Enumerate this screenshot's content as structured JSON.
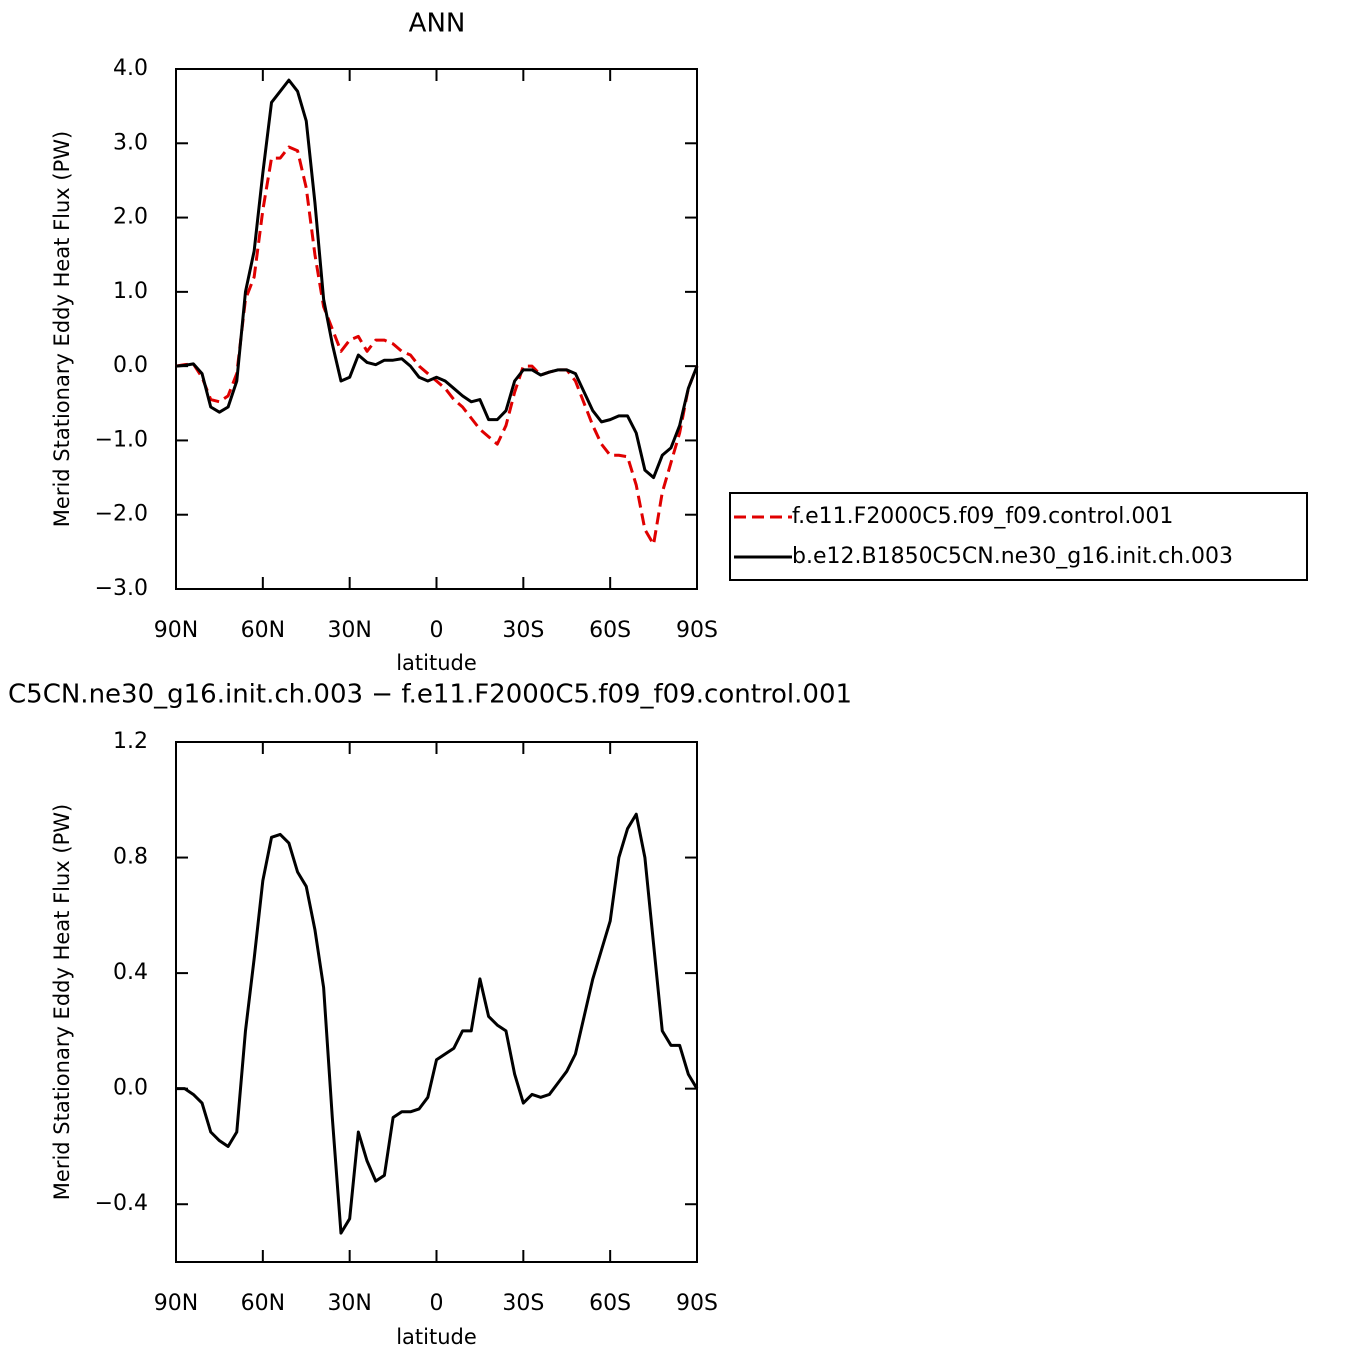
{
  "chart_data": [
    {
      "type": "line",
      "title": "ANN",
      "xlabel": "latitude",
      "ylabel": "Merid Stationary Eddy Heat Flux (PW)",
      "xlim": [
        90,
        -90
      ],
      "ylim": [
        -3,
        4
      ],
      "xticks": [
        {
          "value": 90,
          "label": "90N"
        },
        {
          "value": 60,
          "label": "60N"
        },
        {
          "value": 30,
          "label": "30N"
        },
        0,
        {
          "value": -30,
          "label": "30S"
        },
        {
          "value": -60,
          "label": "60S"
        },
        {
          "value": -90,
          "label": "90S"
        }
      ],
      "yticks": [
        {
          "value": -3,
          "label": "−3.0"
        },
        {
          "value": -2,
          "label": "−2.0"
        },
        {
          "value": -1,
          "label": "−1.0"
        },
        {
          "value": 0,
          "label": "0.0"
        },
        {
          "value": 1,
          "label": "1.0"
        },
        {
          "value": 2,
          "label": "2.0"
        },
        {
          "value": 3,
          "label": "3.0"
        },
        {
          "value": 4,
          "label": "4.0"
        }
      ],
      "legend_position": "right",
      "x": [
        90,
        87,
        84,
        81,
        78,
        75,
        72,
        69,
        66,
        63,
        60,
        57,
        54,
        51,
        48,
        45,
        42,
        39,
        36,
        33,
        30,
        27,
        24,
        21,
        18,
        15,
        12,
        9,
        6,
        3,
        0,
        -3,
        -6,
        -9,
        -12,
        -15,
        -18,
        -21,
        -24,
        -27,
        -30,
        -33,
        -36,
        -39,
        -42,
        -45,
        -48,
        -51,
        -54,
        -57,
        -60,
        -63,
        -66,
        -69,
        -72,
        -75,
        -78,
        -81,
        -84,
        -87,
        -90
      ],
      "series": [
        {
          "name": "f.e11.F2000C5.f09_f09.control.001",
          "color": "#e00000",
          "dashed": true,
          "values": [
            0,
            0.02,
            0.03,
            -0.15,
            -0.45,
            -0.48,
            -0.4,
            -0.1,
            0.9,
            1.2,
            2.1,
            2.8,
            2.8,
            2.95,
            2.9,
            2.4,
            1.5,
            0.8,
            0.5,
            0.2,
            0.35,
            0.4,
            0.2,
            0.35,
            0.35,
            0.3,
            0.2,
            0.15,
            0.0,
            -0.1,
            -0.2,
            -0.3,
            -0.45,
            -0.55,
            -0.7,
            -0.85,
            -0.95,
            -1.05,
            -0.8,
            -0.35,
            0.0,
            0.0,
            -0.12,
            -0.08,
            -0.05,
            -0.05,
            -0.2,
            -0.5,
            -0.8,
            -1.05,
            -1.2,
            -1.2,
            -1.22,
            -1.6,
            -2.2,
            -2.4,
            -1.7,
            -1.3,
            -0.9,
            -0.3,
            0
          ]
        },
        {
          "name": "b.e12.B1850C5CN.ne30_g16.init.ch.003",
          "color": "#000000",
          "dashed": false,
          "values": [
            0,
            0.01,
            0.03,
            -0.1,
            -0.55,
            -0.62,
            -0.55,
            -0.2,
            1.0,
            1.55,
            2.6,
            3.55,
            3.7,
            3.85,
            3.7,
            3.3,
            2.2,
            0.9,
            0.3,
            -0.2,
            -0.15,
            0.15,
            0.05,
            0.02,
            0.08,
            0.08,
            0.1,
            0.0,
            -0.15,
            -0.2,
            -0.15,
            -0.2,
            -0.3,
            -0.4,
            -0.48,
            -0.45,
            -0.72,
            -0.72,
            -0.6,
            -0.2,
            -0.05,
            -0.05,
            -0.12,
            -0.08,
            -0.05,
            -0.05,
            -0.1,
            -0.35,
            -0.6,
            -0.75,
            -0.72,
            -0.67,
            -0.67,
            -0.9,
            -1.4,
            -1.5,
            -1.2,
            -1.1,
            -0.8,
            -0.3,
            0
          ]
        }
      ]
    },
    {
      "type": "line",
      "title": "C5CN.ne30_g16.init.ch.003 − f.e11.F2000C5.f09_f09.control.001",
      "xlabel": "latitude",
      "ylabel": "Merid Stationary Eddy Heat Flux (PW)",
      "xlim": [
        90,
        -90
      ],
      "ylim": [
        -0.6,
        1.2
      ],
      "xticks": [
        {
          "value": 90,
          "label": "90N"
        },
        {
          "value": 60,
          "label": "60N"
        },
        {
          "value": 30,
          "label": "30N"
        },
        0,
        {
          "value": -30,
          "label": "30S"
        },
        {
          "value": -60,
          "label": "60S"
        },
        {
          "value": -90,
          "label": "90S"
        }
      ],
      "yticks": [
        {
          "value": -0.4,
          "label": "−0.4"
        },
        {
          "value": 0,
          "label": "0.0"
        },
        0.4,
        0.8,
        1.2
      ],
      "x": [
        90,
        87,
        84,
        81,
        78,
        75,
        72,
        69,
        66,
        63,
        60,
        57,
        54,
        51,
        48,
        45,
        42,
        39,
        36,
        33,
        30,
        27,
        24,
        21,
        18,
        15,
        12,
        9,
        6,
        3,
        0,
        -3,
        -6,
        -9,
        -12,
        -15,
        -18,
        -21,
        -24,
        -27,
        -30,
        -33,
        -36,
        -39,
        -42,
        -45,
        -48,
        -51,
        -54,
        -57,
        -60,
        -63,
        -66,
        -69,
        -72,
        -75,
        -78,
        -81,
        -84,
        -87,
        -90
      ],
      "series": [
        {
          "color": "#000000",
          "values": [
            0,
            0,
            -0.02,
            -0.05,
            -0.15,
            -0.18,
            -0.2,
            -0.15,
            0.2,
            0.45,
            0.72,
            0.87,
            0.88,
            0.85,
            0.75,
            0.7,
            0.55,
            0.35,
            -0.1,
            -0.5,
            -0.45,
            -0.15,
            -0.25,
            -0.32,
            -0.3,
            -0.1,
            -0.08,
            -0.08,
            -0.07,
            -0.03,
            0.1,
            0.12,
            0.14,
            0.2,
            0.2,
            0.38,
            0.25,
            0.22,
            0.2,
            0.05,
            -0.05,
            -0.02,
            -0.03,
            -0.02,
            0.02,
            0.06,
            0.12,
            0.25,
            0.38,
            0.48,
            0.58,
            0.8,
            0.9,
            0.95,
            0.8,
            0.5,
            0.2,
            0.15,
            0.15,
            0.05,
            0
          ]
        }
      ]
    }
  ]
}
